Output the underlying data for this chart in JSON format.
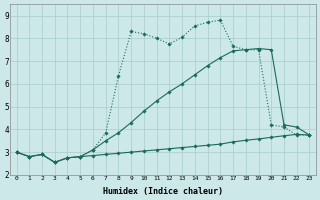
{
  "background_color": "#cce8e8",
  "grid_color": "#aacccc",
  "line_color": "#1a6b5a",
  "xlabel": "Humidex (Indice chaleur)",
  "xlim": [
    -0.5,
    23.5
  ],
  "ylim": [
    2.0,
    9.5
  ],
  "xticks": [
    0,
    1,
    2,
    3,
    4,
    5,
    6,
    7,
    8,
    9,
    10,
    11,
    12,
    13,
    14,
    15,
    16,
    17,
    18,
    19,
    20,
    21,
    22,
    23
  ],
  "yticks": [
    2,
    3,
    4,
    5,
    6,
    7,
    8,
    9
  ],
  "curve_top_x": [
    0,
    1,
    2,
    3,
    4,
    5,
    6,
    7,
    8,
    9,
    10,
    11,
    12,
    13,
    14,
    15,
    16,
    17,
    18,
    19,
    20,
    21,
    22,
    23
  ],
  "curve_top_y": [
    3.0,
    2.8,
    2.9,
    2.55,
    2.75,
    2.8,
    3.1,
    3.85,
    6.35,
    8.3,
    8.2,
    8.0,
    7.75,
    8.05,
    8.55,
    8.7,
    8.8,
    7.65,
    7.5,
    7.5,
    4.2,
    4.1,
    3.75,
    3.75
  ],
  "curve_mid_x": [
    0,
    1,
    2,
    3,
    4,
    5,
    6,
    7,
    8,
    9,
    10,
    11,
    12,
    13,
    14,
    15,
    16,
    17,
    18,
    19,
    20,
    21,
    22,
    23
  ],
  "curve_mid_y": [
    3.0,
    2.8,
    2.9,
    2.55,
    2.75,
    2.8,
    3.1,
    3.5,
    3.85,
    4.3,
    4.8,
    5.25,
    5.65,
    6.0,
    6.4,
    6.8,
    7.15,
    7.45,
    7.5,
    7.55,
    7.5,
    4.2,
    4.1,
    3.75
  ],
  "curve_bot_x": [
    0,
    1,
    2,
    3,
    4,
    5,
    6,
    7,
    8,
    9,
    10,
    11,
    12,
    13,
    14,
    15,
    16,
    17,
    18,
    19,
    20,
    21,
    22,
    23
  ],
  "curve_bot_y": [
    3.0,
    2.8,
    2.9,
    2.55,
    2.75,
    2.8,
    2.85,
    2.9,
    2.95,
    3.0,
    3.05,
    3.1,
    3.15,
    3.2,
    3.25,
    3.3,
    3.35,
    3.45,
    3.52,
    3.58,
    3.65,
    3.72,
    3.78,
    3.75
  ]
}
